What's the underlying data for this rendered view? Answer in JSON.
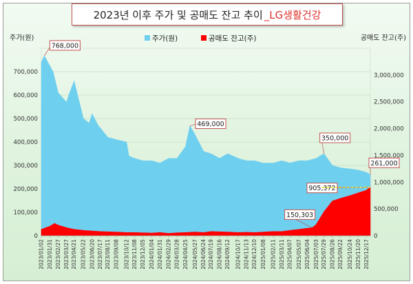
{
  "chart_data": {
    "type": "area",
    "title": "2023년 이후 주가 및 공매도 잔고 추이",
    "title_suffix": "_LG생활건강",
    "ylabel_left": "주가(원)",
    "ylabel_right": "공매도 잔고(주)",
    "ylim_left": [
      0,
      800000
    ],
    "ylim_right": [
      0,
      3500000
    ],
    "legend_position": "top",
    "grid": true,
    "colors": {
      "price": "#6fcfef",
      "short": "#ff0000",
      "annotation_border": "#c0504d",
      "title_suffix": "#e0302a"
    },
    "left_ticks": [
      "0",
      "100,000",
      "200,000",
      "300,000",
      "400,000",
      "500,000",
      "600,000",
      "700,000"
    ],
    "right_ticks": [
      "0",
      "500,000",
      "1,000,000",
      "1,500,000",
      "2,000,000",
      "2,500,000",
      "3,000,000"
    ],
    "x_ticks": [
      "2023/01/02",
      "2023/01/31",
      "2023/02/27",
      "2023/03/27",
      "2023/04/21",
      "2023/05/22",
      "2023/06/20",
      "2023/07/17",
      "2023/08/11",
      "2023/09/08",
      "2023/10/12",
      "2023/11/08",
      "2023/12/05",
      "2024/01/04",
      "2024/01/31",
      "2024/02/29",
      "2024/03/28",
      "2024/04/25",
      "2024/05/27",
      "2024/06/24",
      "2024/07/19",
      "2024/08/16",
      "2024/09/12",
      "2024/10/17",
      "2024/11/13",
      "2024/12/10",
      "2025/01/08",
      "2025/02/11",
      "2025/03/11",
      "2025/04/07",
      "2025/05/07",
      "2025/06/04",
      "2025/07/03",
      "2025/07/29",
      "2025/08/26",
      "2025/09/22",
      "2025/10/24",
      "2025/11/20",
      "2025/12/17"
    ],
    "series": [
      {
        "name": "주가(원)",
        "axis": "left",
        "type": "area",
        "x": [
          "2023/01/02",
          "2023/01/12",
          "2023/02/10",
          "2023/02/27",
          "2023/03/27",
          "2023/04/03",
          "2023/04/21",
          "2023/05/22",
          "2023/06/10",
          "2023/06/20",
          "2023/07/10",
          "2023/07/17",
          "2023/08/11",
          "2023/09/08",
          "2023/10/12",
          "2023/10/20",
          "2023/11/08",
          "2023/12/05",
          "2024/01/04",
          "2024/01/31",
          "2024/02/29",
          "2024/03/28",
          "2024/04/25",
          "2024/05/10",
          "2024/05/27",
          "2024/06/24",
          "2024/07/19",
          "2024/08/16",
          "2024/09/12",
          "2024/10/17",
          "2024/11/13",
          "2024/12/10",
          "2025/01/08",
          "2025/02/11",
          "2025/03/11",
          "2025/04/07",
          "2025/05/07",
          "2025/06/04",
          "2025/07/03",
          "2025/07/29",
          "2025/08/26",
          "2025/09/22",
          "2025/10/24",
          "2025/11/20",
          "2025/12/17",
          "2025/12/30"
        ],
        "values": [
          740000,
          768000,
          700000,
          610000,
          570000,
          600000,
          660000,
          500000,
          480000,
          520000,
          470000,
          460000,
          420000,
          410000,
          400000,
          340000,
          330000,
          320000,
          320000,
          310000,
          330000,
          330000,
          380000,
          469000,
          430000,
          360000,
          350000,
          330000,
          350000,
          330000,
          320000,
          320000,
          310000,
          310000,
          320000,
          310000,
          320000,
          320000,
          330000,
          350000,
          300000,
          290000,
          285000,
          280000,
          270000,
          261000
        ]
      },
      {
        "name": "공매도 잔고(주)",
        "axis": "right",
        "type": "area",
        "x": [
          "2023/01/02",
          "2023/01/31",
          "2023/02/15",
          "2023/02/27",
          "2023/03/27",
          "2023/04/21",
          "2023/05/22",
          "2023/06/20",
          "2023/07/17",
          "2023/08/11",
          "2023/09/08",
          "2023/10/12",
          "2023/11/08",
          "2023/12/05",
          "2024/01/04",
          "2024/01/31",
          "2024/02/29",
          "2024/03/28",
          "2024/04/25",
          "2024/05/27",
          "2024/06/24",
          "2024/07/19",
          "2024/08/16",
          "2024/09/12",
          "2024/10/17",
          "2024/11/13",
          "2024/12/10",
          "2025/01/08",
          "2025/02/11",
          "2025/03/11",
          "2025/04/07",
          "2025/05/07",
          "2025/06/04",
          "2025/06/20",
          "2025/07/03",
          "2025/07/29",
          "2025/08/26",
          "2025/09/22",
          "2025/10/24",
          "2025/11/20",
          "2025/12/17",
          "2025/12/30"
        ],
        "values": [
          120000,
          180000,
          230000,
          200000,
          150000,
          120000,
          100000,
          90000,
          80000,
          75000,
          70000,
          60000,
          60000,
          55000,
          50000,
          60000,
          45000,
          55000,
          60000,
          70000,
          60000,
          80000,
          75000,
          70000,
          60000,
          65000,
          60000,
          70000,
          80000,
          80000,
          100000,
          120000,
          140000,
          150303,
          210000,
          450000,
          650000,
          700000,
          750000,
          800000,
          850000,
          905372
        ]
      }
    ],
    "annotations": [
      {
        "label": "768,000",
        "series": "주가(원)",
        "x": "2023/01/12",
        "y": 768000
      },
      {
        "label": "469,000",
        "series": "주가(원)",
        "x": "2024/05/10",
        "y": 469000
      },
      {
        "label": "350,000",
        "series": "주가(원)",
        "x": "2025/07/29",
        "y": 350000
      },
      {
        "label": "261,000",
        "series": "주가(원)",
        "x": "2025/12/30",
        "y": 261000
      },
      {
        "label": "905,372",
        "series": "공매도 잔고(주)",
        "x": "2025/12/30",
        "y": 905372
      },
      {
        "label": "150,303",
        "series": "공매도 잔고(주)",
        "x": "2025/06/20",
        "y": 150303
      }
    ]
  }
}
